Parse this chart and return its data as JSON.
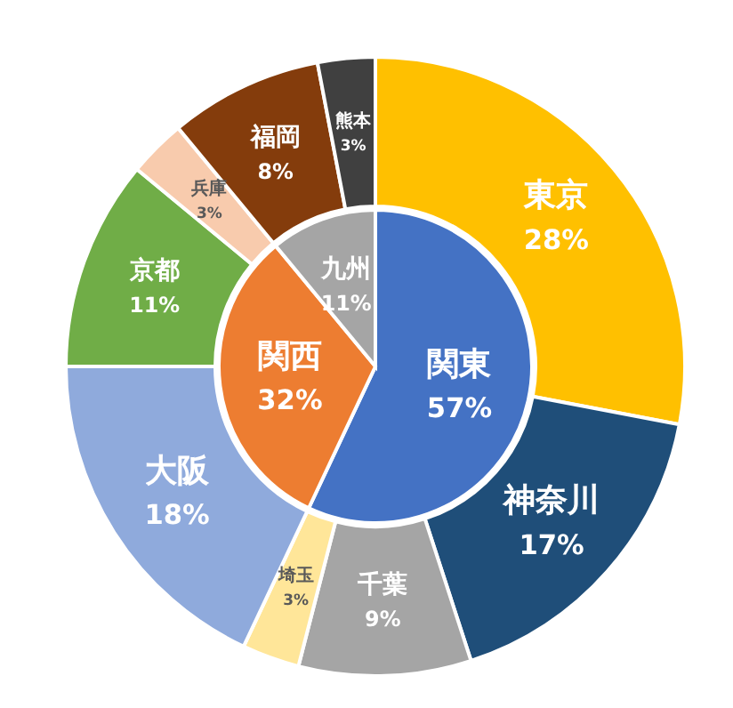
{
  "chart_data": [
    {
      "type": "pie",
      "categories": [
        "関東",
        "関西",
        "九州"
      ],
      "values": [
        57,
        32,
        11
      ],
      "colors": [
        "#4472c4",
        "#ed7d31",
        "#a5a5a5"
      ],
      "value_labels": [
        "57%",
        "32%",
        "11%"
      ]
    },
    {
      "type": "donut",
      "categories": [
        "東京",
        "神奈川",
        "千葉",
        "埼玉",
        "大阪",
        "京都",
        "兵庫",
        "福岡",
        "熊本"
      ],
      "values": [
        28,
        17,
        9,
        3,
        18,
        11,
        3,
        8,
        3
      ],
      "colors": [
        "#ffc000",
        "#1f4e79",
        "#a5a5a5",
        "#ffe699",
        "#8faadc",
        "#70ad47",
        "#f8cbad",
        "#843c0c",
        "#404040"
      ],
      "value_labels": [
        "28%",
        "17%",
        "9%",
        "3%",
        "18%",
        "11%",
        "3%",
        "8%",
        "3%"
      ]
    }
  ]
}
